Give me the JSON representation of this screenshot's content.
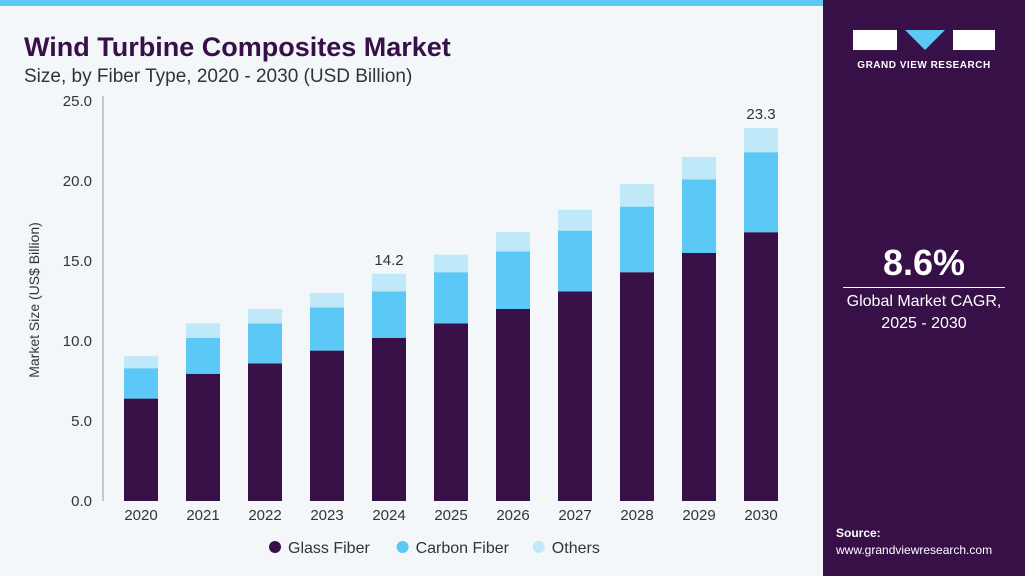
{
  "title": "Wind Turbine Composites Market",
  "subtitle": "Size, by Fiber Type, 2020 - 2030 (USD Billion)",
  "sidebar": {
    "brand": "GRAND VIEW RESEARCH",
    "cagr": "8.6%",
    "cagr_label_1": "Global Market CAGR,",
    "cagr_label_2": "2025 - 2030",
    "source_label": "Source:",
    "source_url": "www.grandviewresearch.com"
  },
  "chart_data": {
    "type": "bar",
    "stacked": true,
    "title": "Wind Turbine Composites Market",
    "ylabel": "Market Size (US$ Billion)",
    "xlabel": "",
    "ylim": [
      0,
      25
    ],
    "yticks": [
      "0.0",
      "5.0",
      "10.0",
      "15.0",
      "20.0",
      "25.0"
    ],
    "categories": [
      "2020",
      "2021",
      "2022",
      "2023",
      "2024",
      "2025",
      "2026",
      "2027",
      "2028",
      "2029",
      "2030"
    ],
    "series": [
      {
        "name": "Glass Fiber",
        "color": "#371047",
        "values": [
          6.4,
          7.95,
          8.6,
          9.4,
          10.2,
          11.1,
          12.0,
          13.1,
          14.3,
          15.5,
          16.8
        ]
      },
      {
        "name": "Carbon Fiber",
        "color": "#5bc8f5",
        "values": [
          1.9,
          2.25,
          2.5,
          2.7,
          2.9,
          3.2,
          3.6,
          3.8,
          4.1,
          4.6,
          5.0
        ]
      },
      {
        "name": "Others",
        "color": "#bfe8f9",
        "values": [
          0.75,
          0.9,
          0.9,
          0.9,
          1.1,
          1.1,
          1.2,
          1.3,
          1.4,
          1.4,
          1.5
        ]
      }
    ],
    "annotations": [
      {
        "category": "2024",
        "text": "14.2"
      },
      {
        "category": "2030",
        "text": "23.3"
      }
    ],
    "legend": "bottom"
  }
}
